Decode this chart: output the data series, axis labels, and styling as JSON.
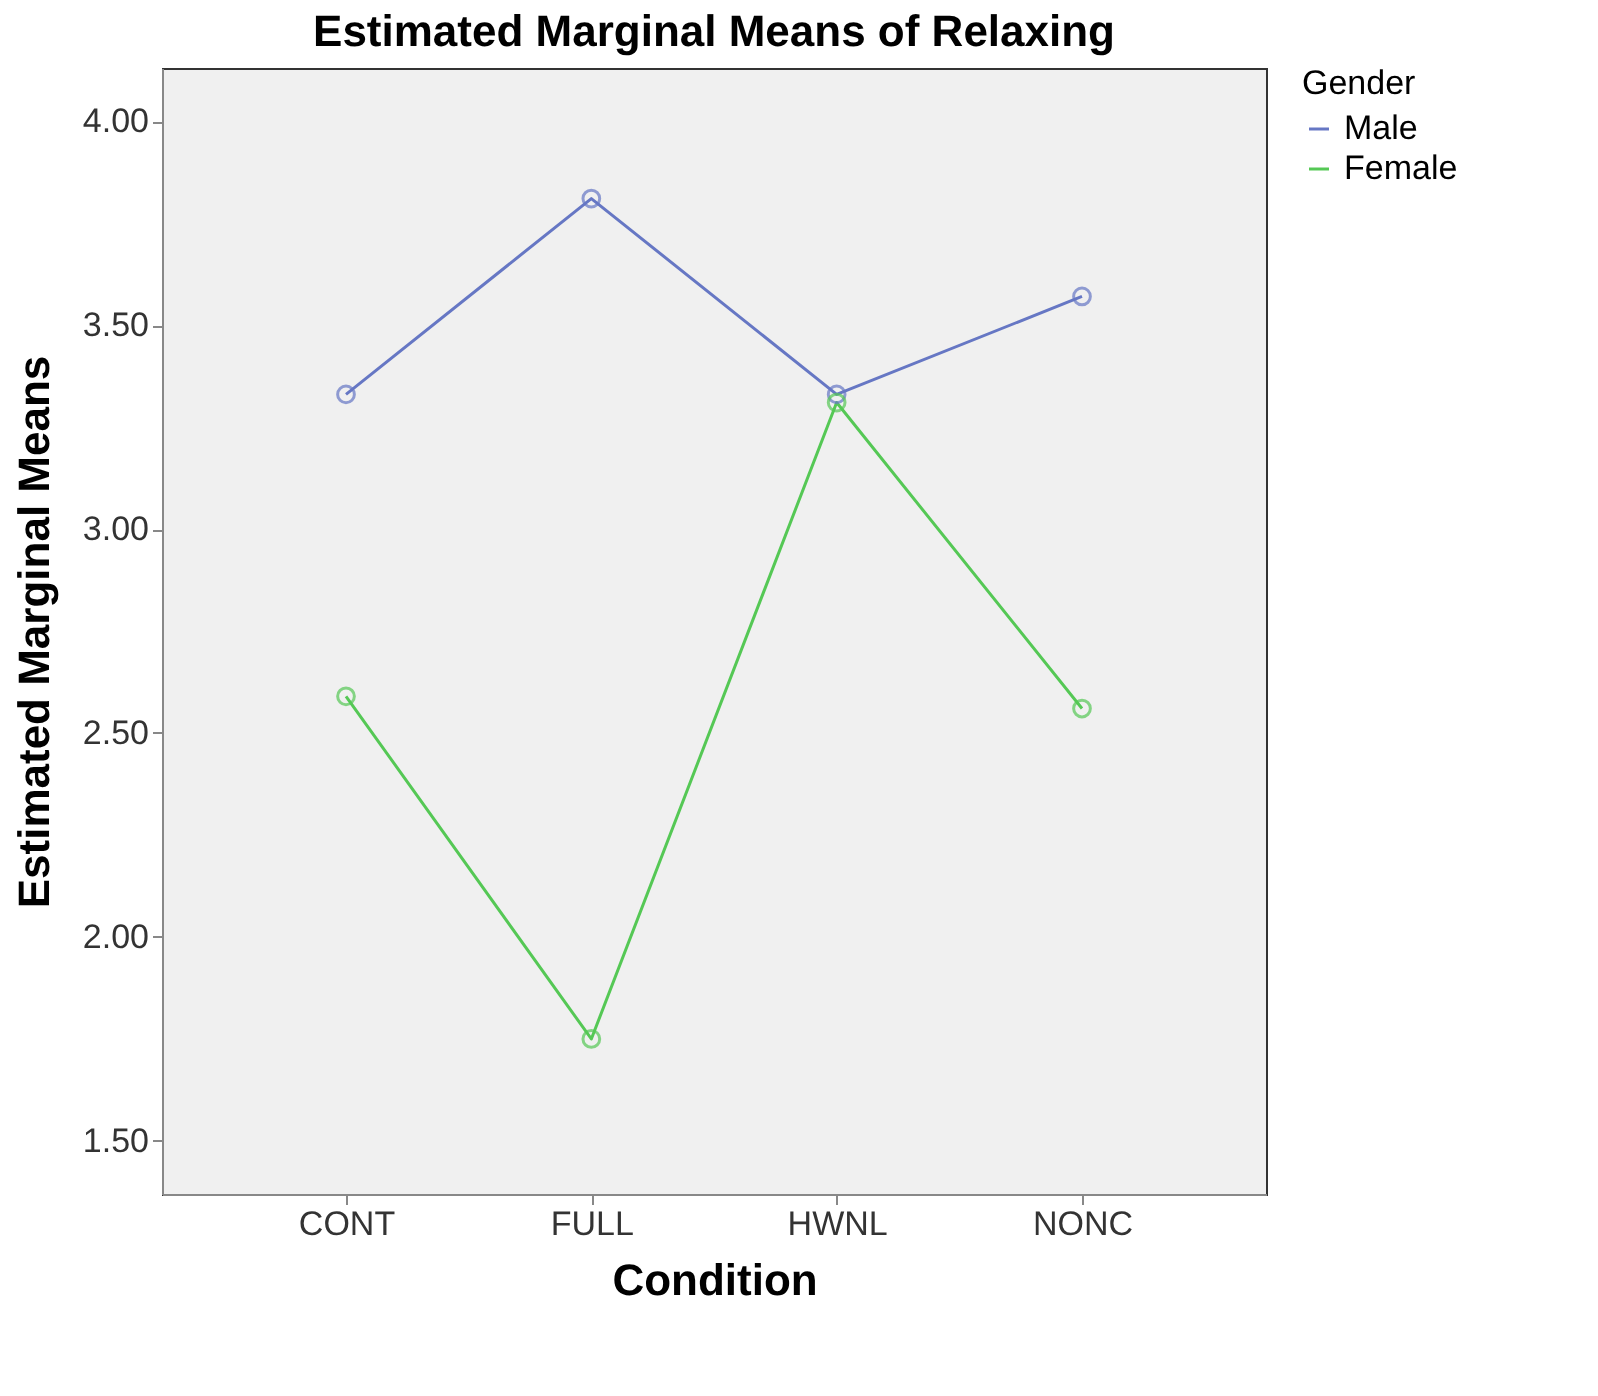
{
  "chart_data": {
    "type": "line",
    "title": "Estimated Marginal Means of Relaxing",
    "xlabel": "Condition",
    "ylabel": "Estimated Marginal Means",
    "legend_title": "Gender",
    "categories": [
      "CONT",
      "FULL",
      "HWNL",
      "NONC"
    ],
    "series": [
      {
        "name": "Male",
        "color": "#6677c4",
        "values": [
          3.33,
          3.81,
          3.33,
          3.57
        ]
      },
      {
        "name": "Female",
        "color": "#55c855",
        "values": [
          2.59,
          1.75,
          3.31,
          2.56
        ]
      }
    ],
    "ylim": [
      1.37,
      4.13
    ],
    "yticks": [
      {
        "value": 1.5,
        "label": "1.50"
      },
      {
        "value": 2,
        "label": "2.00"
      },
      {
        "value": 2.5,
        "label": "2.50"
      },
      {
        "value": 3,
        "label": "3.00"
      },
      {
        "value": 3.5,
        "label": "3.50"
      },
      {
        "value": 4,
        "label": "4.00"
      }
    ],
    "legend": "top right",
    "marker": "circle",
    "grid": false
  }
}
